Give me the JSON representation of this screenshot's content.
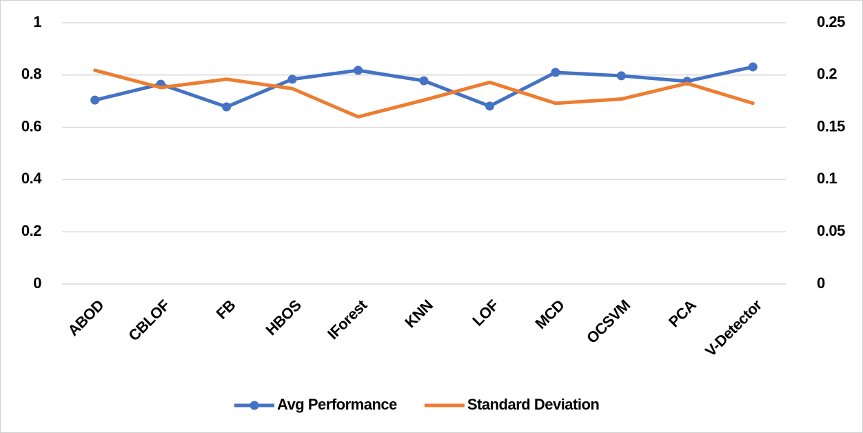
{
  "chart_data": {
    "type": "line",
    "categories": [
      "ABOD",
      "CBLOF",
      "FB",
      "HBOS",
      "IForest",
      "KNN",
      "LOF",
      "MCD",
      "OCSVM",
      "PCA",
      "V-Detector"
    ],
    "series": [
      {
        "name": "Avg Performance",
        "color": "#4472c4",
        "marker": true,
        "values": [
          0.704,
          0.765,
          0.678,
          0.784,
          0.818,
          0.778,
          0.681,
          0.81,
          0.797,
          0.776,
          0.831
        ]
      },
      {
        "name": "Standard Deviation",
        "color": "#ed7d31",
        "marker": false,
        "axis": "y2",
        "values": [
          0.2045,
          0.188,
          0.196,
          0.187,
          0.16,
          0.176,
          0.193,
          0.173,
          0.177,
          0.192,
          0.173
        ]
      }
    ],
    "ylim": [
      0,
      1
    ],
    "yticks": [
      0,
      0.2,
      0.4,
      0.6,
      0.8,
      1
    ],
    "y2lim": [
      0,
      0.25
    ],
    "y2ticks": [
      0,
      0.05,
      0.1,
      0.15,
      0.2,
      0.25
    ],
    "grid": true,
    "legend": "bottom"
  }
}
